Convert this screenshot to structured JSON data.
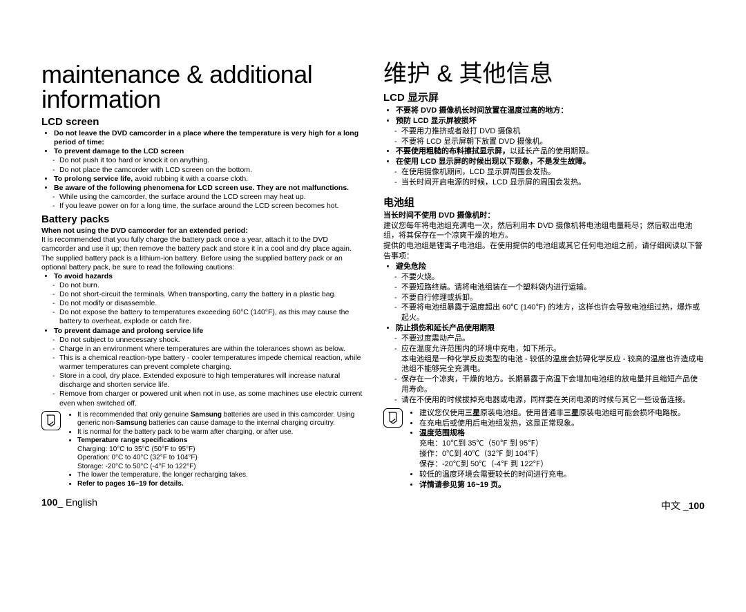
{
  "left": {
    "title": "maintenance & additional information",
    "section1": {
      "heading": "LCD screen",
      "bullets": [
        {
          "bold": "Do not leave the DVD camcorder in a place where the temperature is very high for a long period of time:"
        },
        {
          "bold": "To prevent damage to the LCD screen",
          "subs": [
            "Do not push it too hard or knock it on anything.",
            "Do not place the camcorder with LCD screen on the bottom."
          ]
        },
        {
          "bold_prefix": "To prolong service life,",
          "rest": " avoid rubbing it with a coarse cloth."
        },
        {
          "bold": "Be aware of the following phenomena for LCD screen use. They are not malfunctions.",
          "subs": [
            "While using the camcorder, the surface around the LCD screen may heat up.",
            "If you leave power on for a long time, the surface around the LCD screen becomes hot."
          ]
        }
      ]
    },
    "section2": {
      "heading": "Battery packs",
      "lead_bold": "When not using the DVD camcorder for an extended period:",
      "lead_body": "It is recommended that you fully charge the battery pack once a year, attach it to the DVD camcorder and use it up; then remove the battery pack and store it in a cool and dry place again.",
      "para2": "The supplied battery pack is a lithium-ion battery. Before using the supplied battery pack or an optional battery pack, be sure to read the following cautions:",
      "bullets": [
        {
          "bold": "To avoid hazards",
          "subs": [
            "Do not burn.",
            "Do not short-circuit the terminals. When transporting, carry the battery in a plastic bag.",
            "Do not modify or disassemble.",
            "Do not expose the battery to temperatures exceeding 60°C (140°F), as this may cause the battery to overheat, explode or catch fire."
          ]
        },
        {
          "bold": "To prevent damage and prolong service life",
          "subs": [
            "Do not subject to unnecessary shock.",
            "Charge in an environment where temperatures are within the tolerances shown as below.",
            "This is a chemical reaction-type battery - cooler temperatures impede chemical reaction, while warmer temperatures can prevent complete charging.",
            "Store in a cool, dry place. Extended exposure to high temperatures will increase natural discharge and shorten service life.",
            "Remove from charger or powered unit when not in use, as some machines use electric current even when switched off."
          ]
        }
      ],
      "note": {
        "items": [
          {
            "html": "It is recommended that only genuine <b>Samsung</b> batteries are used in this camcorder. Using generic non-<b>Samsung</b> batteries can cause damage to the internal charging circuitry."
          },
          {
            "text": "It is normal for the battery pack to be warm after charging, or after use."
          },
          {
            "bold": "Temperature range specifications",
            "lines": [
              "Charging: 10°C to 35°C (50°F to 95°F)",
              "Operation: 0°C to 40°C (32°F to 104°F)",
              "Storage: -20°C to 50°C (-4°F to 122°F)"
            ]
          },
          {
            "text": "The lower the temperature, the longer recharging takes."
          },
          {
            "bold": "Refer to pages 16~19 for details."
          }
        ]
      }
    },
    "footer": {
      "page": "100",
      "lang": "English"
    }
  },
  "right": {
    "title": "维护 & 其他信息",
    "section1": {
      "heading": "LCD 显示屏",
      "bullets": [
        {
          "bold": "不要将 DVD 摄像机长时间放置在温度过高的地方："
        },
        {
          "bold": "预防 LCD 显示屏被损坏",
          "subs": [
            "不要用力推挤或者敲打 DVD 摄像机",
            "不要将 LCD 显示屏朝下放置 DVD 摄像机。"
          ]
        },
        {
          "bold_prefix": "不要使用粗糙的布料擦拭显示屏，",
          "rest": "以延长产品的使用期限。"
        },
        {
          "bold": "在使用 LCD 显示屏的时候出现以下现象，不是发生故障。",
          "subs": [
            "在使用摄像机期间，LCD 显示屏周围会发热。",
            "当长时间开启电源的时候，LCD 显示屏的周围会发热。"
          ]
        }
      ]
    },
    "section2": {
      "heading": "电池组",
      "lead_bold": "当长时间不使用 DVD 摄像机时：",
      "lead_body": "建议您每年将电池组充满电一次，然后利用本 DVD 摄像机将电池组电量耗尽；然后取出电池组，将其保存在一个凉爽干燥的地方。",
      "para2": "提供的电池组是锂离子电池组。在使用提供的电池组或其它任何电池组之前，请仔细阅读以下警告事项：",
      "bullets": [
        {
          "bold": "避免危险",
          "subs": [
            "不要火烧。",
            "不要短路终端。请将电池组装在一个塑料袋内进行运输。",
            "不要自行修理或拆卸。",
            "不要将电池组暴露于温度超出 60℃ (140℉) 的地方，这样也许会导致电池组过热，爆炸或起火。"
          ]
        },
        {
          "bold": "防止损伤和延长产品使用期限",
          "subs": [
            "不要过度震动产品。",
            "应在温度允许范围内的环境中充电，如下所示。\n本电池组是一种化学反应类型的电池 - 较低的温度会妨碍化学反应 - 较高的温度也许造成电池组不能够完全充满电。",
            "保存在一个凉爽，干燥的地方。长期暴露于高温下会增加电池组的放电量并且缩短产品使用寿命。",
            "请在不使用的时候拔掉充电器或电源，同样要在关闭电源的时候与其它一些设备连接。"
          ]
        }
      ],
      "note": {
        "items": [
          {
            "html": "建议您仅使用<b>三星</b>原装电池组。使用普通非<b>三星</b>原装电池组可能会损坏电路板。"
          },
          {
            "text": "在充电后或使用后电池组发热，这是正常现象。"
          },
          {
            "bold": "温度范围规格",
            "lines": [
              "充电：10℃到 35℃（50℉ 到 95℉）",
              "操作：0℃到 40℃（32℉ 到 104℉）",
              "保存：-20℃到 50℃（-4℉ 到 122℉）"
            ]
          },
          {
            "text": "较低的温度环境会需要较长的时间进行充电。"
          },
          {
            "bold": "详情请参见第 16~19 页。"
          }
        ]
      }
    },
    "footer": {
      "lang": "中文",
      "page": "100"
    }
  }
}
